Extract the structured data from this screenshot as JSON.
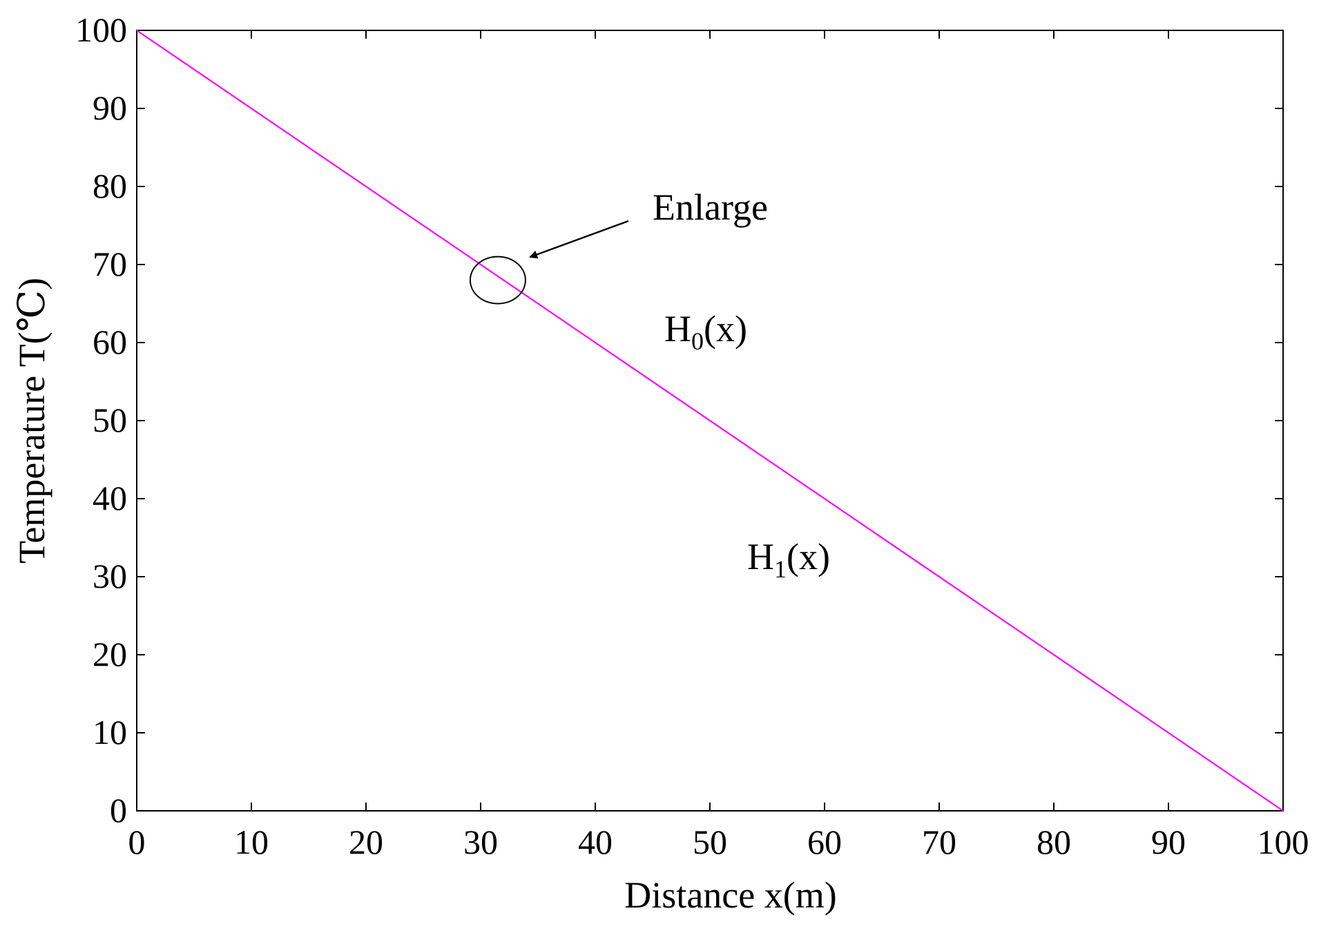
{
  "chart_data": {
    "type": "line",
    "title": "",
    "xlabel": "Distance x(m)",
    "ylabel": "Temperature T(℃)",
    "xlim": [
      0,
      100
    ],
    "ylim": [
      0,
      100
    ],
    "xticks": [
      0,
      10,
      20,
      30,
      40,
      50,
      60,
      70,
      80,
      90,
      100
    ],
    "yticks": [
      0,
      10,
      20,
      30,
      40,
      50,
      60,
      70,
      80,
      90,
      100
    ],
    "grid": false,
    "series": [
      {
        "x": [
          0,
          100
        ],
        "y": [
          100,
          0
        ],
        "color": "#ff00ff"
      }
    ],
    "annotations": {
      "enlarge_text": "Enlarge",
      "enlarge_circle_center": [
        31.5,
        68
      ],
      "h0_main": "H",
      "h0_sub": "0",
      "h0_tail": "(x)",
      "h1_main": "H",
      "h1_sub": "1",
      "h1_tail": "(x)"
    }
  }
}
